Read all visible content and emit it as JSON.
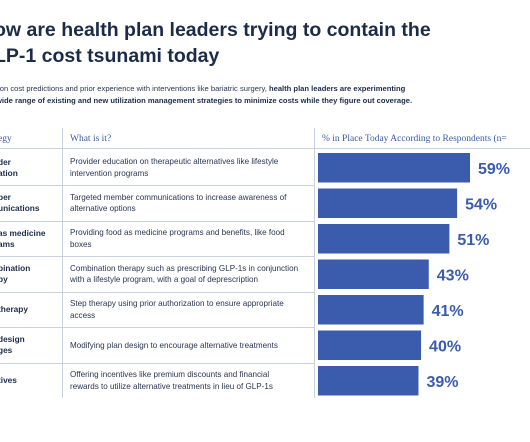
{
  "title": {
    "line1": "ow are health plan leaders trying to contain the",
    "line2": "LP-1 cost tsunami today"
  },
  "intro": {
    "line1_normal": "l on cost predictions and prior experience with interventions like bariatric surgery, ",
    "line1_bold": "health plan leaders are experimenting",
    "line2_bold": "wide range of existing and new utilization management strategies to minimize costs while they figure out coverage."
  },
  "table": {
    "headers": [
      "egy",
      "What is it?",
      "% in Place Today According to Respondents (n="
    ],
    "rows": [
      {
        "strategy": [
          "der",
          "ation"
        ],
        "description": [
          "Provider education on therapeutic alternatives like lifestyle",
          "intervention programs"
        ],
        "label": "59%"
      },
      {
        "strategy": [
          "ber",
          "unications"
        ],
        "description": [
          "Targeted member communications to increase awareness of",
          "alternative options"
        ],
        "label": "54%"
      },
      {
        "strategy": [
          "as medicine",
          "ams"
        ],
        "description": [
          "Providing food as medicine programs and benefits, like food",
          "boxes"
        ],
        "label": "51%"
      },
      {
        "strategy": [
          "bination",
          "py"
        ],
        "description": [
          "Combination therapy such as prescribing GLP-1s in conjunction",
          "with a lifestyle program, with a goal of deprescription"
        ],
        "label": "43%"
      },
      {
        "strategy": [
          "therapy"
        ],
        "description": [
          "Step therapy using prior authorization to ensure appropriate",
          "access"
        ],
        "label": "41%"
      },
      {
        "strategy": [
          "design",
          "ges"
        ],
        "description": [
          "Modifying plan design to encourage alternative treatments"
        ],
        "label": "40%"
      },
      {
        "strategy": [
          "tives"
        ],
        "description": [
          "Offering incentives like premium discounts and financial",
          "rewards to utilize alternative treatments in lieu of GLP-1s"
        ],
        "label": "39%"
      }
    ]
  },
  "chart_data": {
    "type": "bar",
    "orientation": "horizontal",
    "categories": [
      "der ation",
      "ber unications",
      "as medicine ams",
      "bination py",
      "therapy",
      "design ges",
      "tives"
    ],
    "values": [
      59,
      54,
      51,
      43,
      41,
      40,
      39
    ],
    "value_labels": [
      "59%",
      "54%",
      "51%",
      "43%",
      "41%",
      "40%",
      "39%"
    ],
    "title": "% in Place Today According to Respondents (n=",
    "bar_color": "#3b5bad",
    "label_color": "#3b5bad"
  }
}
